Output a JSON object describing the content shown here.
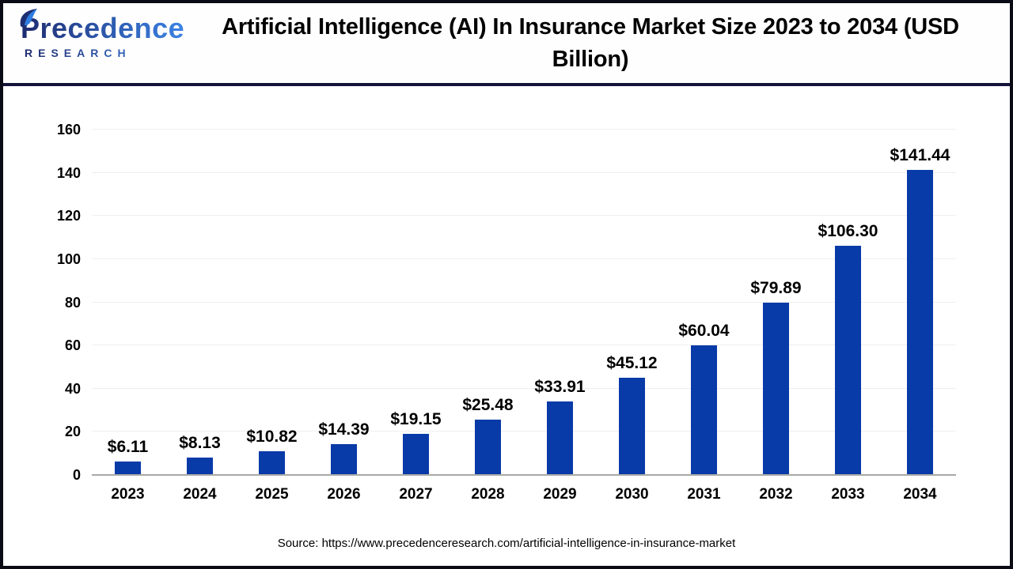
{
  "header": {
    "logo": {
      "brand": "Precedence",
      "subtitle": "RESEARCH"
    },
    "title": "Artificial Intelligence (AI) In Insurance Market Size 2023 to 2034 (USD Billion)"
  },
  "footer": {
    "source": "Source: https://www.precedenceresearch.com/artificial-intelligence-in-insurance-market"
  },
  "colors": {
    "bar": "#083AA8",
    "grid": "#EFEFEF",
    "axis_line": "#A9A9A9",
    "frame": "#0B0B16",
    "divider": "#14143A",
    "logo_gradient_start": "#1E2A6E",
    "logo_gradient_end": "#3C86E8",
    "text": "#000000"
  },
  "chart_data": {
    "type": "bar",
    "title": "Artificial Intelligence (AI) In Insurance Market Size 2023 to 2034 (USD Billion)",
    "categories": [
      "2023",
      "2024",
      "2025",
      "2026",
      "2027",
      "2028",
      "2029",
      "2030",
      "2031",
      "2032",
      "2033",
      "2034"
    ],
    "values": [
      6.11,
      8.13,
      10.82,
      14.39,
      19.15,
      25.48,
      33.91,
      45.12,
      60.04,
      79.89,
      106.3,
      141.44
    ],
    "value_labels": [
      "$6.11",
      "$8.13",
      "$10.82",
      "$14.39",
      "$19.15",
      "$25.48",
      "$33.91",
      "$45.12",
      "$60.04",
      "$79.89",
      "$106.30",
      "$141.44"
    ],
    "unit": "USD Billion",
    "ylim": [
      0,
      160
    ],
    "yticks": [
      0,
      20,
      40,
      60,
      80,
      100,
      120,
      140,
      160
    ],
    "grid": true,
    "legend": false
  }
}
